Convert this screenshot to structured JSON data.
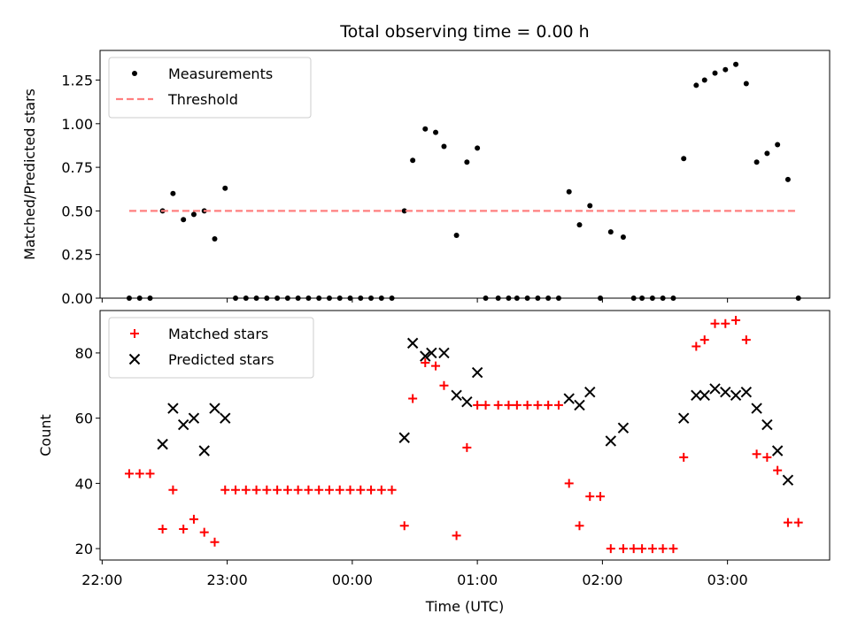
{
  "chart_data": [
    {
      "type": "scatter",
      "title": "Total observing time = 0.00 h",
      "xlabel": "",
      "ylabel": "Matched/Predicted stars",
      "ylim": [
        0,
        1.42
      ],
      "yticks": [
        "0.00",
        "0.25",
        "0.50",
        "0.75",
        "1.00",
        "1.25"
      ],
      "xlim": [
        "21:59",
        "03:49"
      ],
      "xticks": [
        "22:00",
        "23:00",
        "00:00",
        "01:00",
        "02:00",
        "03:00"
      ],
      "legend_position": "top-left",
      "series": [
        {
          "name": "Measurements",
          "marker": "dot",
          "color": "#000000",
          "points": [
            {
              "x": "22:13",
              "y": 0
            },
            {
              "x": "22:18",
              "y": 0
            },
            {
              "x": "22:23",
              "y": 0
            },
            {
              "x": "22:29",
              "y": 0.5
            },
            {
              "x": "22:34",
              "y": 0.6
            },
            {
              "x": "22:39",
              "y": 0.45
            },
            {
              "x": "22:44",
              "y": 0.48
            },
            {
              "x": "22:49",
              "y": 0.5
            },
            {
              "x": "22:54",
              "y": 0.34
            },
            {
              "x": "22:59",
              "y": 0.63
            },
            {
              "x": "23:04",
              "y": 0
            },
            {
              "x": "23:09",
              "y": 0
            },
            {
              "x": "23:14",
              "y": 0
            },
            {
              "x": "23:19",
              "y": 0
            },
            {
              "x": "23:24",
              "y": 0
            },
            {
              "x": "23:29",
              "y": 0
            },
            {
              "x": "23:34",
              "y": 0
            },
            {
              "x": "23:39",
              "y": 0
            },
            {
              "x": "23:44",
              "y": 0
            },
            {
              "x": "23:49",
              "y": 0
            },
            {
              "x": "23:54",
              "y": 0
            },
            {
              "x": "23:59",
              "y": 0
            },
            {
              "x": "00:04",
              "y": 0
            },
            {
              "x": "00:09",
              "y": 0
            },
            {
              "x": "00:14",
              "y": 0
            },
            {
              "x": "00:19",
              "y": 0
            },
            {
              "x": "00:25",
              "y": 0.5
            },
            {
              "x": "00:29",
              "y": 0.79
            },
            {
              "x": "00:35",
              "y": 0.97
            },
            {
              "x": "00:40",
              "y": 0.95
            },
            {
              "x": "00:44",
              "y": 0.87
            },
            {
              "x": "00:50",
              "y": 0.36
            },
            {
              "x": "00:55",
              "y": 0.78
            },
            {
              "x": "01:00",
              "y": 0.86
            },
            {
              "x": "01:04",
              "y": 0
            },
            {
              "x": "01:10",
              "y": 0
            },
            {
              "x": "01:15",
              "y": 0
            },
            {
              "x": "01:19",
              "y": 0
            },
            {
              "x": "01:24",
              "y": 0
            },
            {
              "x": "01:29",
              "y": 0
            },
            {
              "x": "01:34",
              "y": 0
            },
            {
              "x": "01:39",
              "y": 0
            },
            {
              "x": "01:44",
              "y": 0.61
            },
            {
              "x": "01:49",
              "y": 0.42
            },
            {
              "x": "01:54",
              "y": 0.53
            },
            {
              "x": "01:59",
              "y": 0
            },
            {
              "x": "02:04",
              "y": 0.38
            },
            {
              "x": "02:10",
              "y": 0.35
            },
            {
              "x": "02:15",
              "y": 0
            },
            {
              "x": "02:19",
              "y": 0
            },
            {
              "x": "02:24",
              "y": 0
            },
            {
              "x": "02:29",
              "y": 0
            },
            {
              "x": "02:34",
              "y": 0
            },
            {
              "x": "02:39",
              "y": 0.8
            },
            {
              "x": "02:45",
              "y": 1.22
            },
            {
              "x": "02:49",
              "y": 1.25
            },
            {
              "x": "02:54",
              "y": 1.29
            },
            {
              "x": "02:59",
              "y": 1.31
            },
            {
              "x": "03:04",
              "y": 1.34
            },
            {
              "x": "03:09",
              "y": 1.23
            },
            {
              "x": "03:14",
              "y": 0.78
            },
            {
              "x": "03:19",
              "y": 0.83
            },
            {
              "x": "03:24",
              "y": 0.88
            },
            {
              "x": "03:29",
              "y": 0.68
            },
            {
              "x": "03:34",
              "y": 0
            }
          ]
        },
        {
          "name": "Threshold",
          "marker": "dashed-line",
          "color": "#ff7f7f",
          "points": [
            {
              "x": "22:13",
              "y": 0.5
            },
            {
              "x": "03:34",
              "y": 0.5
            }
          ]
        }
      ]
    },
    {
      "type": "scatter",
      "title": "",
      "xlabel": "Time (UTC)",
      "ylabel": "Count",
      "ylim": [
        16.5,
        93
      ],
      "yticks": [
        "20",
        "40",
        "60",
        "80"
      ],
      "xlim": [
        "21:59",
        "03:49"
      ],
      "xticks": [
        "22:00",
        "23:00",
        "00:00",
        "01:00",
        "02:00",
        "03:00"
      ],
      "legend_position": "top-left",
      "series": [
        {
          "name": "Matched stars",
          "marker": "plus",
          "color": "#ff0000",
          "points": [
            {
              "x": "22:13",
              "y": 43
            },
            {
              "x": "22:18",
              "y": 43
            },
            {
              "x": "22:23",
              "y": 43
            },
            {
              "x": "22:29",
              "y": 26
            },
            {
              "x": "22:34",
              "y": 38
            },
            {
              "x": "22:39",
              "y": 26
            },
            {
              "x": "22:44",
              "y": 29
            },
            {
              "x": "22:49",
              "y": 25
            },
            {
              "x": "22:54",
              "y": 22
            },
            {
              "x": "22:59",
              "y": 38
            },
            {
              "x": "23:04",
              "y": 38
            },
            {
              "x": "23:09",
              "y": 38
            },
            {
              "x": "23:14",
              "y": 38
            },
            {
              "x": "23:19",
              "y": 38
            },
            {
              "x": "23:24",
              "y": 38
            },
            {
              "x": "23:29",
              "y": 38
            },
            {
              "x": "23:34",
              "y": 38
            },
            {
              "x": "23:39",
              "y": 38
            },
            {
              "x": "23:44",
              "y": 38
            },
            {
              "x": "23:49",
              "y": 38
            },
            {
              "x": "23:54",
              "y": 38
            },
            {
              "x": "23:59",
              "y": 38
            },
            {
              "x": "00:04",
              "y": 38
            },
            {
              "x": "00:09",
              "y": 38
            },
            {
              "x": "00:14",
              "y": 38
            },
            {
              "x": "00:19",
              "y": 38
            },
            {
              "x": "00:25",
              "y": 27
            },
            {
              "x": "00:29",
              "y": 66
            },
            {
              "x": "00:35",
              "y": 77
            },
            {
              "x": "00:40",
              "y": 76
            },
            {
              "x": "00:44",
              "y": 70
            },
            {
              "x": "00:50",
              "y": 24
            },
            {
              "x": "00:55",
              "y": 51
            },
            {
              "x": "01:00",
              "y": 64
            },
            {
              "x": "01:04",
              "y": 64
            },
            {
              "x": "01:10",
              "y": 64
            },
            {
              "x": "01:15",
              "y": 64
            },
            {
              "x": "01:19",
              "y": 64
            },
            {
              "x": "01:24",
              "y": 64
            },
            {
              "x": "01:29",
              "y": 64
            },
            {
              "x": "01:34",
              "y": 64
            },
            {
              "x": "01:39",
              "y": 64
            },
            {
              "x": "01:44",
              "y": 40
            },
            {
              "x": "01:49",
              "y": 27
            },
            {
              "x": "01:54",
              "y": 36
            },
            {
              "x": "01:59",
              "y": 36
            },
            {
              "x": "02:04",
              "y": 20
            },
            {
              "x": "02:10",
              "y": 20
            },
            {
              "x": "02:15",
              "y": 20
            },
            {
              "x": "02:19",
              "y": 20
            },
            {
              "x": "02:24",
              "y": 20
            },
            {
              "x": "02:29",
              "y": 20
            },
            {
              "x": "02:34",
              "y": 20
            },
            {
              "x": "02:39",
              "y": 48
            },
            {
              "x": "02:45",
              "y": 82
            },
            {
              "x": "02:49",
              "y": 84
            },
            {
              "x": "02:54",
              "y": 89
            },
            {
              "x": "02:59",
              "y": 89
            },
            {
              "x": "03:04",
              "y": 90
            },
            {
              "x": "03:09",
              "y": 84
            },
            {
              "x": "03:14",
              "y": 49
            },
            {
              "x": "03:19",
              "y": 48
            },
            {
              "x": "03:24",
              "y": 44
            },
            {
              "x": "03:29",
              "y": 28
            },
            {
              "x": "03:34",
              "y": 28
            }
          ]
        },
        {
          "name": "Predicted stars",
          "marker": "x",
          "color": "#000000",
          "points": [
            {
              "x": "22:29",
              "y": 52
            },
            {
              "x": "22:34",
              "y": 63
            },
            {
              "x": "22:39",
              "y": 58
            },
            {
              "x": "22:44",
              "y": 60
            },
            {
              "x": "22:49",
              "y": 50
            },
            {
              "x": "22:54",
              "y": 63
            },
            {
              "x": "22:59",
              "y": 60
            },
            {
              "x": "00:25",
              "y": 54
            },
            {
              "x": "00:29",
              "y": 83
            },
            {
              "x": "00:35",
              "y": 79
            },
            {
              "x": "00:38",
              "y": 80
            },
            {
              "x": "00:44",
              "y": 80
            },
            {
              "x": "00:50",
              "y": 67
            },
            {
              "x": "00:55",
              "y": 65
            },
            {
              "x": "01:00",
              "y": 74
            },
            {
              "x": "01:44",
              "y": 66
            },
            {
              "x": "01:49",
              "y": 64
            },
            {
              "x": "01:54",
              "y": 68
            },
            {
              "x": "02:04",
              "y": 53
            },
            {
              "x": "02:10",
              "y": 57
            },
            {
              "x": "02:39",
              "y": 60
            },
            {
              "x": "02:45",
              "y": 67
            },
            {
              "x": "02:49",
              "y": 67
            },
            {
              "x": "02:54",
              "y": 69
            },
            {
              "x": "02:59",
              "y": 68
            },
            {
              "x": "03:04",
              "y": 67
            },
            {
              "x": "03:09",
              "y": 68
            },
            {
              "x": "03:14",
              "y": 63
            },
            {
              "x": "03:19",
              "y": 58
            },
            {
              "x": "03:24",
              "y": 50
            },
            {
              "x": "03:29",
              "y": 41
            }
          ]
        }
      ]
    }
  ]
}
